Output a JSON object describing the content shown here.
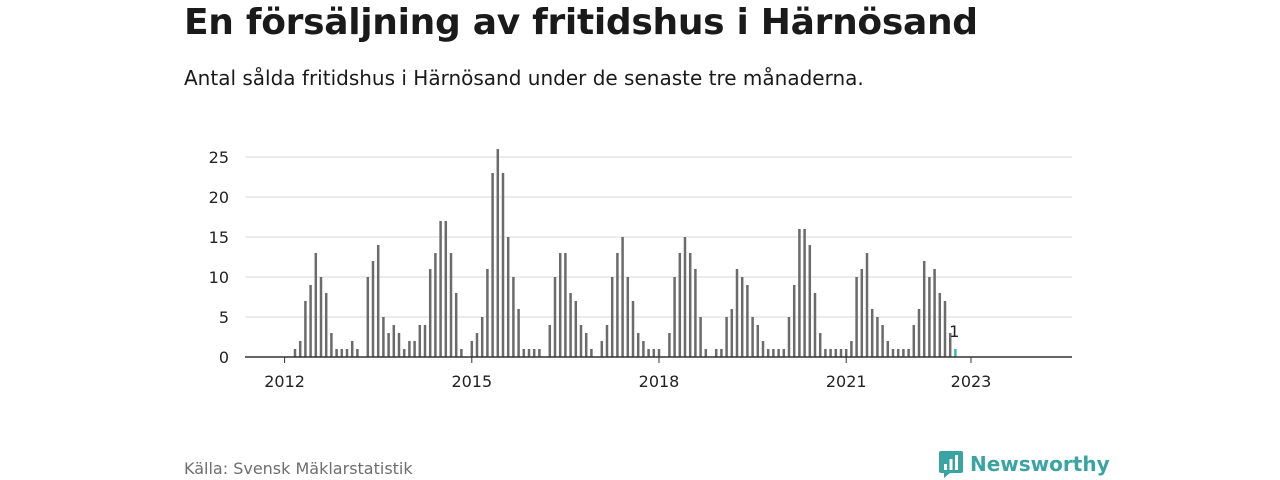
{
  "header": {
    "title": "En försäljning av fritidshus i Härnösand",
    "subtitle": "Antal sålda fritidshus i Härnösand under de senaste tre månaderna."
  },
  "footer": {
    "source": "Källa: Svensk Mäklarstatistik",
    "brand_name": "Newsworthy",
    "brand_icon": "bar-chart-logo-icon",
    "brand_color": "#3aa4a2"
  },
  "colors": {
    "bar": "#6b6b6b",
    "highlight": "#3ab5c8",
    "grid": "#d9d9d9",
    "axis": "#333333"
  },
  "chart_data": {
    "type": "bar",
    "x_start": "2011-01",
    "x_tick_labels": [
      "2012",
      "2015",
      "2018",
      "2021",
      "2023"
    ],
    "y_tick_labels": [
      "0",
      "5",
      "10",
      "15",
      "20",
      "25"
    ],
    "ylim": [
      0,
      25
    ],
    "grid": true,
    "values": [
      0,
      0,
      0,
      0,
      0,
      0,
      0,
      0,
      0,
      0,
      0,
      0,
      0,
      0,
      1,
      2,
      7,
      9,
      13,
      10,
      8,
      3,
      1,
      1,
      1,
      2,
      1,
      0,
      10,
      12,
      14,
      5,
      3,
      4,
      3,
      1,
      2,
      2,
      4,
      4,
      11,
      13,
      17,
      17,
      13,
      8,
      1,
      0,
      2,
      3,
      5,
      11,
      23,
      26,
      23,
      15,
      10,
      6,
      1,
      1,
      1,
      1,
      0,
      4,
      10,
      13,
      13,
      8,
      7,
      4,
      3,
      1,
      0,
      2,
      4,
      10,
      13,
      15,
      10,
      7,
      3,
      2,
      1,
      1,
      1,
      0,
      3,
      10,
      13,
      15,
      13,
      11,
      5,
      1,
      0,
      1,
      1,
      5,
      6,
      11,
      10,
      9,
      5,
      4,
      2,
      1,
      1,
      1,
      1,
      5,
      9,
      16,
      16,
      14,
      8,
      3,
      1,
      1,
      1,
      1,
      1,
      2,
      10,
      11,
      13,
      6,
      5,
      4,
      2,
      1,
      1,
      1,
      1,
      4,
      6,
      12,
      10,
      11,
      8,
      7,
      3,
      1
    ],
    "highlight_value": 1,
    "highlight_label": "1"
  }
}
